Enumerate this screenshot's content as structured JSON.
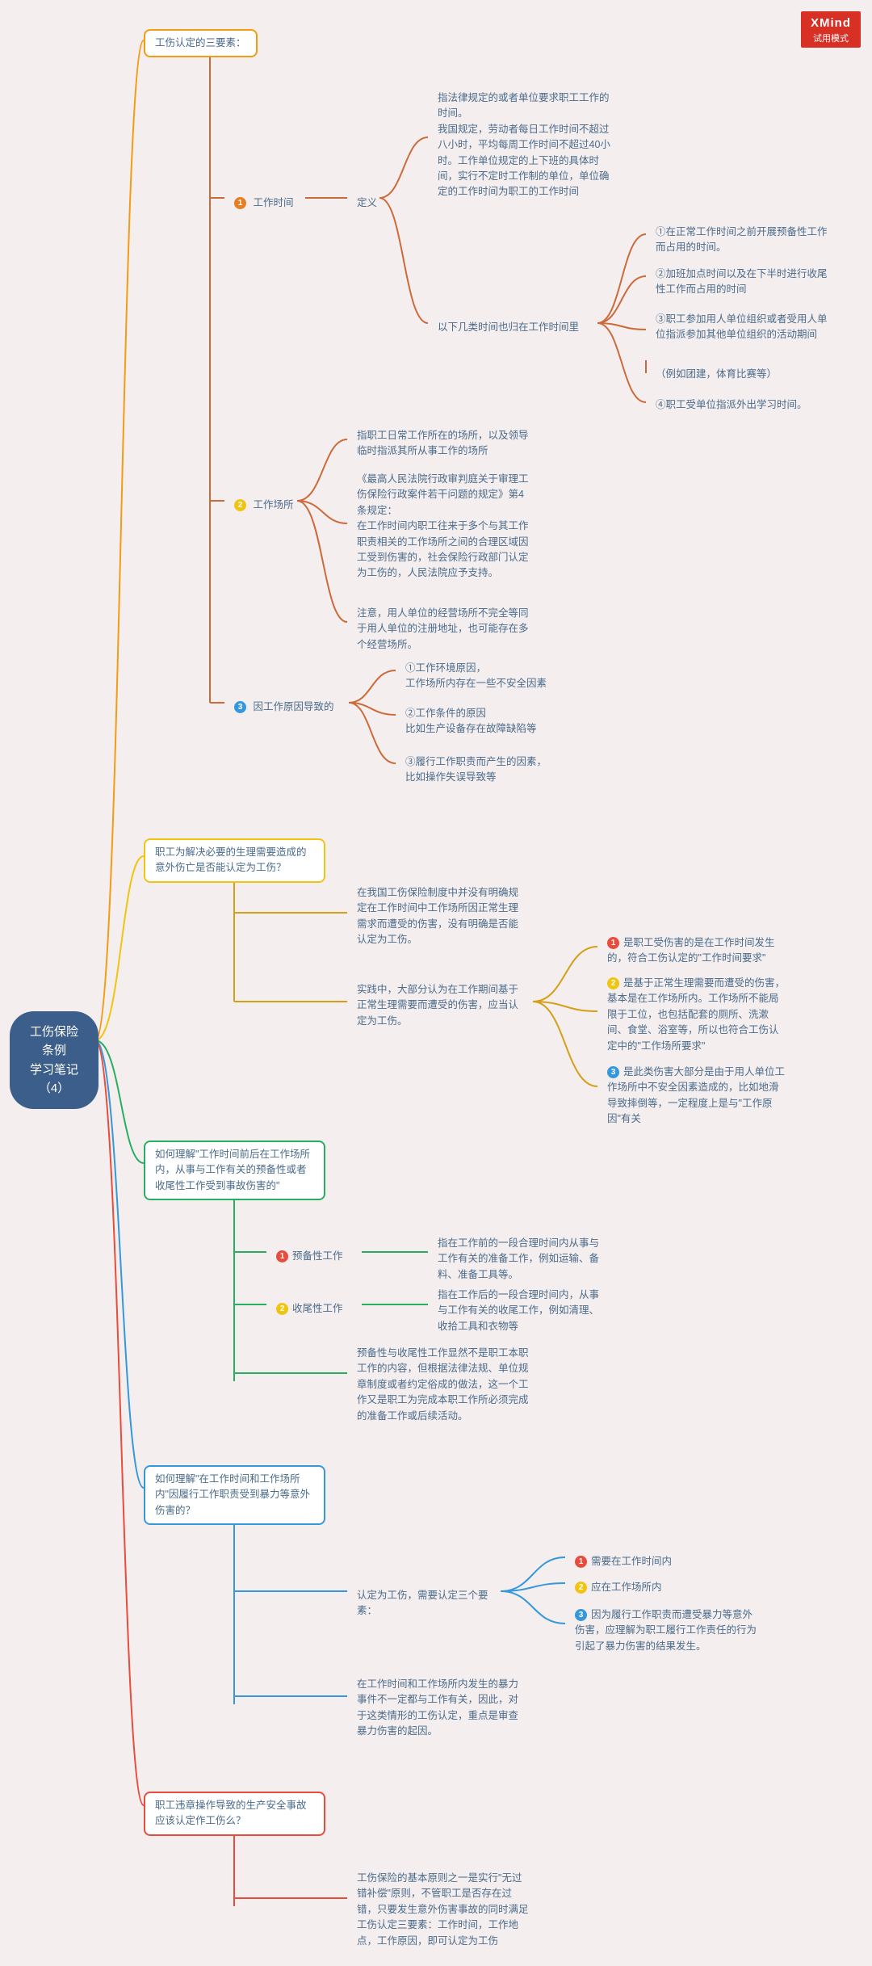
{
  "brand": {
    "line1": "XMind",
    "line2": "试用模式"
  },
  "root": "工伤保险条例\n学习笔记\n（4）",
  "s1_title": "工伤认定的三要素：",
  "s1_1_num": "1",
  "s1_1_label": "工作时间",
  "s1_2_num": "2",
  "s1_2_label": "工作场所",
  "s1_3_num": "3",
  "s1_3_label": "因工作原因导致的",
  "s1_1_def_label": "定义",
  "s1_1_def1": "指法律规定的或者单位要求职工工作的时间。\n我国规定，劳动者每日工作时间不超过八小时，平均每周工作时间不超过40小时。工作单位规定的上下班的具体时间，实行不定时工作制的单位，单位确定的工作时间为职工的工作时间",
  "s1_1_def2_label": "以下几类时间也归在工作时间里",
  "s1_1_def2_a": "①在正常工作时间之前开展预备性工作而占用的时间。",
  "s1_1_def2_b": "②加班加点时间以及在下半时进行收尾性工作而占用的时间",
  "s1_1_def2_c": "③职工参加用人单位组织或者受用人单位指派参加其他单位组织的活动期间",
  "s1_1_def2_c2": "（例如团建，体育比赛等）",
  "s1_1_def2_d": "④职工受单位指派外出学习时间。",
  "s1_2a": "指职工日常工作所在的场所，以及领导临时指派其所从事工作的场所",
  "s1_2b": "《最高人民法院行政审判庭关于审理工伤保险行政案件若干问题的规定》第4条规定：\n在工作时间内职工往来于多个与其工作职责相关的工作场所之间的合理区域因工受到伤害的，社会保险行政部门认定为工伤的，人民法院应予支持。",
  "s1_2c": "注意，用人单位的经营场所不完全等同于用人单位的注册地址，也可能存在多个经营场所。",
  "s1_3a": "①工作环境原因，\n工作场所内存在一些不安全因素",
  "s1_3b": "②工作条件的原因\n比如生产设备存在故障缺陷等",
  "s1_3c": "③履行工作职责而产生的因素，\n比如操作失误导致等",
  "s2_title": "职工为解决必要的生理需要造成的意外伤亡是否能认定为工伤？",
  "s2_a": "在我国工伤保险制度中并没有明确规定在工作时间中工作场所因正常生理需求而遭受的伤害，没有明确是否能认定为工伤。",
  "s2_b": "实践中，大部分认为在工作期间基于正常生理需要而遭受的伤害，应当认定为工伤。",
  "s2_b1": "是职工受伤害的是在工作时间发生的，符合工伤认定的\"工作时间要求\"",
  "s2_b2": "是基于正常生理需要而遭受的伤害，基本是在工作场所内。工作场所不能局限于工位，也包括配套的厕所、洗漱间、食堂、浴室等，所以也符合工伤认定中的\"工作场所要求\"",
  "s2_b3": "是此类伤害大部分是由于用人单位工作场所中不安全因素造成的，比如地滑导致摔倒等，一定程度上是与\"工作原因\"有关",
  "s3_title": "如何理解\"工作时间前后在工作场所内，从事与工作有关的预备性或者收尾性工作受到事故伤害的\"",
  "s3_1_label": "预备性工作",
  "s3_1_text": "指在工作前的一段合理时间内从事与工作有关的准备工作，例如运输、备料、准备工具等。",
  "s3_2_label": "收尾性工作",
  "s3_2_text": "指在工作后的一段合理时间内，从事与工作有关的收尾工作，例如清理、收拾工具和衣物等",
  "s3_c": "预备性与收尾性工作显然不是职工本职工作的内容，但根据法律法规、单位规章制度或者约定俗成的做法，这一个工作又是职工为完成本职工作所必须完成的准备工作或后续活动。",
  "s4_title": "如何理解\"在工作时间和工作场所内\"因履行工作职责受到暴力等意外伤害的？",
  "s4_a": "认定为工伤，需要认定三个要素：",
  "s4_a1": "需要在工作时间内",
  "s4_a2": "应在工作场所内",
  "s4_a3": "因为履行工作职责而遭受暴力等意外伤害，应理解为职工履行工作责任的行为引起了暴力伤害的结果发生。",
  "s4_b": "在工作时间和工作场所内发生的暴力事件不一定都与工作有关，因此，对于这类情形的工伤认定，重点是审查暴力伤害的起因。",
  "s5_title": "职工违章操作导致的生产安全事故应该认定作工伤么？",
  "s5_a": "工伤保险的基本原则之一是实行\"无过错补偿\"原则，不管职工是否存在过错，只要发生意外伤害事故的同时满足工伤认定三要素：工作时间，工作地点，工作原因，即可认定为工伤",
  "colors": {
    "bg": "#f4eeef",
    "text": "#4a6b8a",
    "orange": "#f39c12",
    "yellow": "#f1c40f",
    "green": "#27ae60",
    "blue": "#3498db",
    "red": "#e74c3c",
    "spine": "#cc6b3a"
  }
}
